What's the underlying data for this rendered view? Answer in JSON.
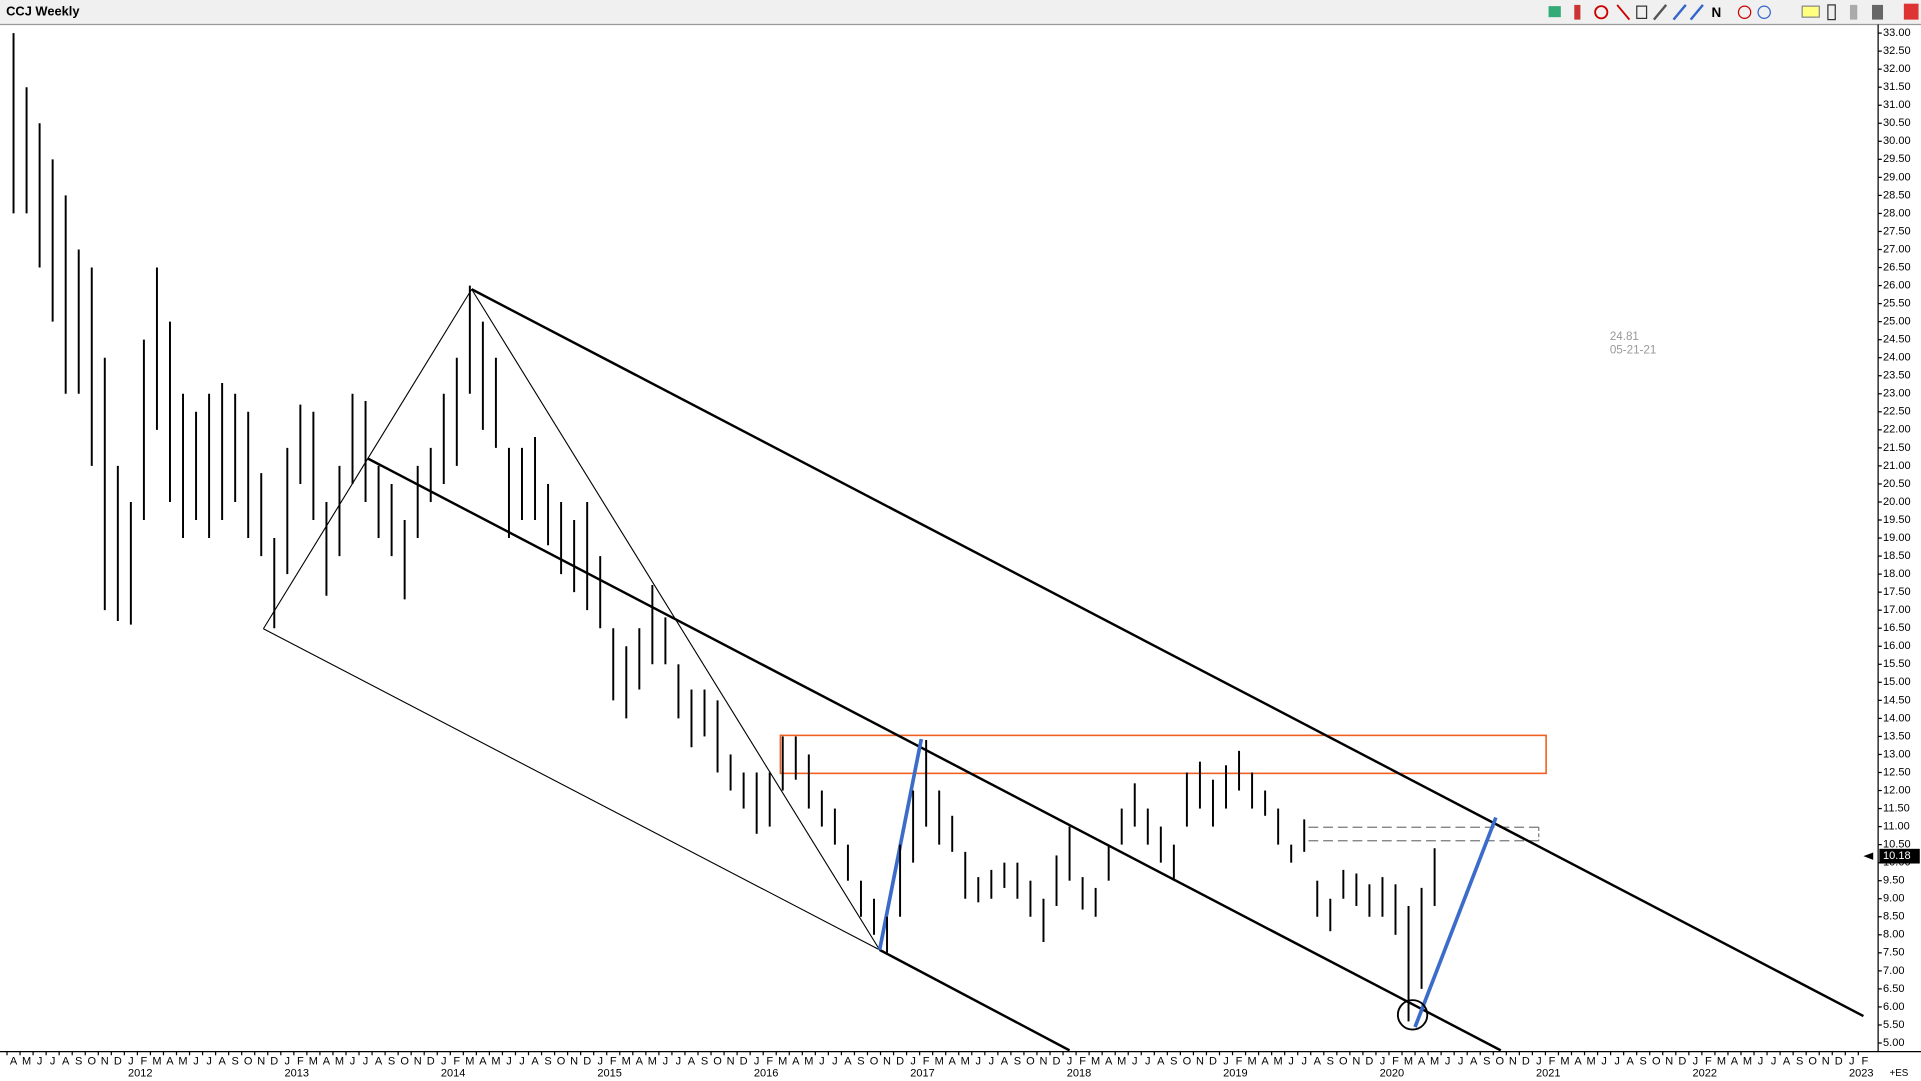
{
  "chart_data": {
    "type": "range-bar",
    "title": "CCJ Weekly",
    "color": "#000000",
    "x": [
      "2011-04",
      "2011-05",
      "2011-06",
      "2011-07",
      "2011-08",
      "2011-09",
      "2011-10",
      "2011-11",
      "2011-12",
      "2012-01",
      "2012-02",
      "2012-03",
      "2012-04",
      "2012-05",
      "2012-06",
      "2012-07",
      "2012-08",
      "2012-09",
      "2012-10",
      "2012-11",
      "2012-12",
      "2013-01",
      "2013-02",
      "2013-03",
      "2013-04",
      "2013-05",
      "2013-06",
      "2013-07",
      "2013-08",
      "2013-09",
      "2013-10",
      "2013-11",
      "2013-12",
      "2014-01",
      "2014-02",
      "2014-03",
      "2014-04",
      "2014-05",
      "2014-06",
      "2014-07",
      "2014-08",
      "2014-09",
      "2014-10",
      "2014-11",
      "2014-12",
      "2015-01",
      "2015-02",
      "2015-03",
      "2015-04",
      "2015-05",
      "2015-06",
      "2015-07",
      "2015-08",
      "2015-09",
      "2015-10",
      "2015-11",
      "2015-12",
      "2016-01",
      "2016-02",
      "2016-03",
      "2016-04",
      "2016-05",
      "2016-06",
      "2016-07",
      "2016-08",
      "2016-09",
      "2016-10",
      "2016-11",
      "2016-12",
      "2017-01",
      "2017-02",
      "2017-03",
      "2017-04",
      "2017-05",
      "2017-06",
      "2017-07",
      "2017-08",
      "2017-09",
      "2017-10",
      "2017-11",
      "2017-12",
      "2018-01",
      "2018-02",
      "2018-03",
      "2018-04",
      "2018-05",
      "2018-06",
      "2018-07",
      "2018-08",
      "2018-09",
      "2018-10",
      "2018-11",
      "2018-12",
      "2019-01",
      "2019-02",
      "2019-03",
      "2019-04",
      "2019-05",
      "2019-06",
      "2019-07",
      "2019-08",
      "2019-09",
      "2019-10",
      "2019-11",
      "2019-12",
      "2020-01",
      "2020-02",
      "2020-03",
      "2020-04",
      "2020-05"
    ],
    "low": [
      28,
      28,
      26.5,
      25,
      23,
      23,
      21,
      17,
      16.7,
      16.6,
      19.5,
      22,
      20,
      19,
      19.5,
      19,
      19.5,
      20,
      19,
      18.5,
      16.5,
      18,
      20.5,
      19.5,
      17.4,
      18.5,
      20.5,
      20,
      19,
      18.5,
      17.3,
      19,
      20,
      20.5,
      21,
      23,
      22,
      21.5,
      19,
      19.5,
      19.5,
      18.8,
      18,
      17.5,
      17,
      16.5,
      14.5,
      14,
      14.8,
      15.5,
      15.5,
      14,
      13.2,
      13.5,
      12.5,
      12,
      11.5,
      10.8,
      11,
      12,
      12.3,
      11.5,
      11,
      10.5,
      9.5,
      8.5,
      8,
      7.5,
      8.5,
      10,
      11,
      10.5,
      10.3,
      9,
      8.9,
      9,
      9.3,
      9,
      8.5,
      7.8,
      8.8,
      9.5,
      8.7,
      8.5,
      9.5,
      10.5,
      11,
      10.5,
      10,
      9.5,
      11,
      11.5,
      11,
      11.5,
      12,
      11.5,
      11.3,
      10.5,
      10,
      10.3,
      8.5,
      8.1,
      9,
      8.8,
      8.5,
      8.5,
      8,
      5.6,
      6.5,
      8.8
    ],
    "high": [
      33,
      31.5,
      30.5,
      29.5,
      28.5,
      27,
      26.5,
      24,
      21,
      20,
      24.5,
      26.5,
      25,
      23,
      22.5,
      23,
      23.3,
      23,
      22.5,
      20.8,
      19,
      21.5,
      22.7,
      22.5,
      20,
      21,
      23,
      22.8,
      21,
      20.5,
      19.5,
      21,
      21.5,
      23,
      24,
      26,
      25,
      24,
      21.5,
      21.5,
      21.8,
      20.5,
      20,
      19.5,
      20,
      18.5,
      16.5,
      16,
      16.5,
      17.7,
      16.8,
      15.5,
      14.8,
      14.8,
      14.5,
      13,
      12.5,
      12.5,
      12.5,
      13.5,
      13.5,
      13,
      12,
      11.5,
      10.5,
      9.5,
      9,
      8.5,
      10.5,
      12,
      13.4,
      12,
      11.3,
      10.3,
      9.6,
      9.8,
      10,
      10,
      9.5,
      9,
      10.2,
      11,
      9.6,
      9.3,
      10.5,
      11.5,
      12.2,
      11.5,
      11,
      10.5,
      12.5,
      12.8,
      12.3,
      12.7,
      13.1,
      12.5,
      12,
      11.5,
      10.5,
      11.2,
      9.5,
      9,
      9.8,
      9.7,
      9.4,
      9.6,
      9.4,
      8.8,
      9.3,
      10.4
    ],
    "last_value": 10.18,
    "cursor_value": 24.81,
    "cursor_date": "05-21-21",
    "corner_label": "+ES",
    "ylim": [
      5,
      33
    ],
    "yticks": [
      {
        "value": 5,
        "label": "5.00"
      },
      {
        "value": 5.5,
        "label": "5.50"
      },
      {
        "value": 6,
        "label": "6.00"
      },
      {
        "value": 6.5,
        "label": "6.50"
      },
      {
        "value": 7,
        "label": "7.00"
      },
      {
        "value": 7.5,
        "label": "7.50"
      },
      {
        "value": 8,
        "label": "8.00"
      },
      {
        "value": 8.5,
        "label": "8.50"
      },
      {
        "value": 9,
        "label": "9.00"
      },
      {
        "value": 9.5,
        "label": "9.50"
      },
      {
        "value": 10,
        "label": "10.00"
      },
      {
        "value": 10.5,
        "label": "10.50"
      },
      {
        "value": 11,
        "label": "11.00"
      },
      {
        "value": 11.5,
        "label": "11.50"
      },
      {
        "value": 12,
        "label": "12.00"
      },
      {
        "value": 12.5,
        "label": "12.50"
      },
      {
        "value": 13,
        "label": "13.00"
      },
      {
        "value": 13.5,
        "label": "13.50"
      },
      {
        "value": 14,
        "label": "14.00"
      },
      {
        "value": 14.5,
        "label": "14.50"
      },
      {
        "value": 15,
        "label": "15.00"
      },
      {
        "value": 15.5,
        "label": "15.50"
      },
      {
        "value": 16,
        "label": "16.00"
      },
      {
        "value": 16.5,
        "label": "16.50"
      },
      {
        "value": 17,
        "label": "17.00"
      },
      {
        "value": 17.5,
        "label": "17.50"
      },
      {
        "value": 18,
        "label": "18.00"
      },
      {
        "value": 18.5,
        "label": "18.50"
      },
      {
        "value": 19,
        "label": "19.00"
      },
      {
        "value": 19.5,
        "label": "19.50"
      },
      {
        "value": 20,
        "label": "20.00"
      },
      {
        "value": 20.5,
        "label": "20.50"
      },
      {
        "value": 21,
        "label": "21.00"
      },
      {
        "value": 21.5,
        "label": "21.50"
      },
      {
        "value": 22,
        "label": "22.00"
      },
      {
        "value": 22.5,
        "label": "22.50"
      },
      {
        "value": 23,
        "label": "23.00"
      },
      {
        "value": 23.5,
        "label": "23.50"
      },
      {
        "value": 24,
        "label": "24.00"
      },
      {
        "value": 24.5,
        "label": "24.50"
      },
      {
        "value": 25,
        "label": "25.00"
      },
      {
        "value": 25.5,
        "label": "25.50"
      },
      {
        "value": 26,
        "label": "26.00"
      },
      {
        "value": 26.5,
        "label": "26.50"
      },
      {
        "value": 27,
        "label": "27.00"
      },
      {
        "value": 27.5,
        "label": "27.50"
      },
      {
        "value": 28,
        "label": "28.00"
      },
      {
        "value": 28.5,
        "label": "28.50"
      },
      {
        "value": 29,
        "label": "29.00"
      },
      {
        "value": 29.5,
        "label": "29.50"
      },
      {
        "value": 30,
        "label": "30.00"
      },
      {
        "value": 30.5,
        "label": "30.50"
      },
      {
        "value": 31,
        "label": "31.00"
      },
      {
        "value": 31.5,
        "label": "31.50"
      },
      {
        "value": 32,
        "label": "32.00"
      },
      {
        "value": 32.5,
        "label": "32.50"
      },
      {
        "value": 33,
        "label": "33.00"
      }
    ],
    "xticks": [
      {
        "value": "2011-04",
        "label": "A"
      },
      {
        "value": "2011-05",
        "label": "M"
      },
      {
        "value": "2011-06",
        "label": "J"
      },
      {
        "value": "2011-07",
        "label": "J"
      },
      {
        "value": "2011-08",
        "label": "A"
      },
      {
        "value": "2011-09",
        "label": "S"
      },
      {
        "value": "2011-10",
        "label": "O"
      },
      {
        "value": "2011-11",
        "label": "N"
      },
      {
        "value": "2011-12",
        "label": "D"
      },
      {
        "value": "2012-01",
        "label": "J"
      },
      {
        "value": "2012-02",
        "label": "F"
      },
      {
        "value": "2012-03",
        "label": "M"
      },
      {
        "value": "2012-04",
        "label": "A"
      },
      {
        "value": "2012-05",
        "label": "M"
      },
      {
        "value": "2012-06",
        "label": "J"
      },
      {
        "value": "2012-07",
        "label": "J"
      },
      {
        "value": "2012-08",
        "label": "A"
      },
      {
        "value": "2012-09",
        "label": "S"
      },
      {
        "value": "2012-10",
        "label": "O"
      },
      {
        "value": "2012-11",
        "label": "N"
      },
      {
        "value": "2012-12",
        "label": "D"
      },
      {
        "value": "2013-01",
        "label": "J"
      },
      {
        "value": "2013-02",
        "label": "F"
      },
      {
        "value": "2013-03",
        "label": "M"
      },
      {
        "value": "2013-04",
        "label": "A"
      },
      {
        "value": "2013-05",
        "label": "M"
      },
      {
        "value": "2013-06",
        "label": "J"
      },
      {
        "value": "2013-07",
        "label": "J"
      },
      {
        "value": "2013-08",
        "label": "A"
      },
      {
        "value": "2013-09",
        "label": "S"
      },
      {
        "value": "2013-10",
        "label": "O"
      },
      {
        "value": "2013-11",
        "label": "N"
      },
      {
        "value": "2013-12",
        "label": "D"
      },
      {
        "value": "2014-01",
        "label": "J"
      },
      {
        "value": "2014-02",
        "label": "F"
      },
      {
        "value": "2014-03",
        "label": "M"
      },
      {
        "value": "2014-04",
        "label": "A"
      },
      {
        "value": "2014-05",
        "label": "M"
      },
      {
        "value": "2014-06",
        "label": "J"
      },
      {
        "value": "2014-07",
        "label": "J"
      },
      {
        "value": "2014-08",
        "label": "A"
      },
      {
        "value": "2014-09",
        "label": "S"
      },
      {
        "value": "2014-10",
        "label": "O"
      },
      {
        "value": "2014-11",
        "label": "N"
      },
      {
        "value": "2014-12",
        "label": "D"
      },
      {
        "value": "2015-01",
        "label": "J"
      },
      {
        "value": "2015-02",
        "label": "F"
      },
      {
        "value": "2015-03",
        "label": "M"
      },
      {
        "value": "2015-04",
        "label": "A"
      },
      {
        "value": "2015-05",
        "label": "M"
      },
      {
        "value": "2015-06",
        "label": "J"
      },
      {
        "value": "2015-07",
        "label": "J"
      },
      {
        "value": "2015-08",
        "label": "A"
      },
      {
        "value": "2015-09",
        "label": "S"
      },
      {
        "value": "2015-10",
        "label": "O"
      },
      {
        "value": "2015-11",
        "label": "N"
      },
      {
        "value": "2015-12",
        "label": "D"
      },
      {
        "value": "2016-01",
        "label": "J"
      },
      {
        "value": "2016-02",
        "label": "F"
      },
      {
        "value": "2016-03",
        "label": "M"
      },
      {
        "value": "2016-04",
        "label": "A"
      },
      {
        "value": "2016-05",
        "label": "M"
      },
      {
        "value": "2016-06",
        "label": "J"
      },
      {
        "value": "2016-07",
        "label": "J"
      },
      {
        "value": "2016-08",
        "label": "A"
      },
      {
        "value": "2016-09",
        "label": "S"
      },
      {
        "value": "2016-10",
        "label": "O"
      },
      {
        "value": "2016-11",
        "label": "N"
      },
      {
        "value": "2016-12",
        "label": "D"
      },
      {
        "value": "2017-01",
        "label": "J"
      },
      {
        "value": "2017-02",
        "label": "F"
      },
      {
        "value": "2017-03",
        "label": "M"
      },
      {
        "value": "2017-04",
        "label": "A"
      },
      {
        "value": "2017-05",
        "label": "M"
      },
      {
        "value": "2017-06",
        "label": "J"
      },
      {
        "value": "2017-07",
        "label": "J"
      },
      {
        "value": "2017-08",
        "label": "A"
      },
      {
        "value": "2017-09",
        "label": "S"
      },
      {
        "value": "2017-10",
        "label": "O"
      },
      {
        "value": "2017-11",
        "label": "N"
      },
      {
        "value": "2017-12",
        "label": "D"
      },
      {
        "value": "2018-01",
        "label": "J"
      },
      {
        "value": "2018-02",
        "label": "F"
      },
      {
        "value": "2018-03",
        "label": "M"
      },
      {
        "value": "2018-04",
        "label": "A"
      },
      {
        "value": "2018-05",
        "label": "M"
      },
      {
        "value": "2018-06",
        "label": "J"
      },
      {
        "value": "2018-07",
        "label": "J"
      },
      {
        "value": "2018-08",
        "label": "A"
      },
      {
        "value": "2018-09",
        "label": "S"
      },
      {
        "value": "2018-10",
        "label": "O"
      },
      {
        "value": "2018-11",
        "label": "N"
      },
      {
        "value": "2018-12",
        "label": "D"
      },
      {
        "value": "2019-01",
        "label": "J"
      },
      {
        "value": "2019-02",
        "label": "F"
      },
      {
        "value": "2019-03",
        "label": "M"
      },
      {
        "value": "2019-04",
        "label": "A"
      },
      {
        "value": "2019-05",
        "label": "M"
      },
      {
        "value": "2019-06",
        "label": "J"
      },
      {
        "value": "2019-07",
        "label": "J"
      },
      {
        "value": "2019-08",
        "label": "A"
      },
      {
        "value": "2019-09",
        "label": "S"
      },
      {
        "value": "2019-10",
        "label": "O"
      },
      {
        "value": "2019-11",
        "label": "N"
      },
      {
        "value": "2019-12",
        "label": "D"
      },
      {
        "value": "2020-01",
        "label": "J"
      },
      {
        "value": "2020-02",
        "label": "F"
      },
      {
        "value": "2020-03",
        "label": "M"
      },
      {
        "value": "2020-04",
        "label": "A"
      },
      {
        "value": "2020-05",
        "label": "M"
      },
      {
        "value": "2020-06",
        "label": "J"
      },
      {
        "value": "2020-07",
        "label": "J"
      },
      {
        "value": "2020-08",
        "label": "A"
      },
      {
        "value": "2020-09",
        "label": "S"
      },
      {
        "value": "2020-10",
        "label": "O"
      },
      {
        "value": "2020-11",
        "label": "N"
      },
      {
        "value": "2020-12",
        "label": "D"
      },
      {
        "value": "2021-01",
        "label": "J"
      },
      {
        "value": "2021-02",
        "label": "F"
      },
      {
        "value": "2021-03",
        "label": "M"
      },
      {
        "value": "2021-04",
        "label": "A"
      },
      {
        "value": "2021-05",
        "label": "M"
      },
      {
        "value": "2021-06",
        "label": "J"
      },
      {
        "value": "2021-07",
        "label": "J"
      },
      {
        "value": "2021-08",
        "label": "A"
      },
      {
        "value": "2021-09",
        "label": "S"
      },
      {
        "value": "2021-10",
        "label": "O"
      },
      {
        "value": "2021-11",
        "label": "N"
      },
      {
        "value": "2021-12",
        "label": "D"
      },
      {
        "value": "2022-01",
        "label": "J"
      },
      {
        "value": "2022-02",
        "label": "F"
      },
      {
        "value": "2022-03",
        "label": "M"
      },
      {
        "value": "2022-04",
        "label": "A"
      },
      {
        "value": "2022-05",
        "label": "M"
      },
      {
        "value": "2022-06",
        "label": "J"
      },
      {
        "value": "2022-07",
        "label": "J"
      },
      {
        "value": "2022-08",
        "label": "A"
      },
      {
        "value": "2022-09",
        "label": "S"
      },
      {
        "value": "2022-10",
        "label": "O"
      },
      {
        "value": "2022-11",
        "label": "N"
      },
      {
        "value": "2022-12",
        "label": "D"
      },
      {
        "value": "2023-01",
        "label": "J"
      },
      {
        "value": "2023-02",
        "label": "F"
      }
    ],
    "year_labels": [
      "2012",
      "2013",
      "2014",
      "2015",
      "2016",
      "2017",
      "2018",
      "2019",
      "2020",
      "2021",
      "2022",
      "2023"
    ]
  }
}
